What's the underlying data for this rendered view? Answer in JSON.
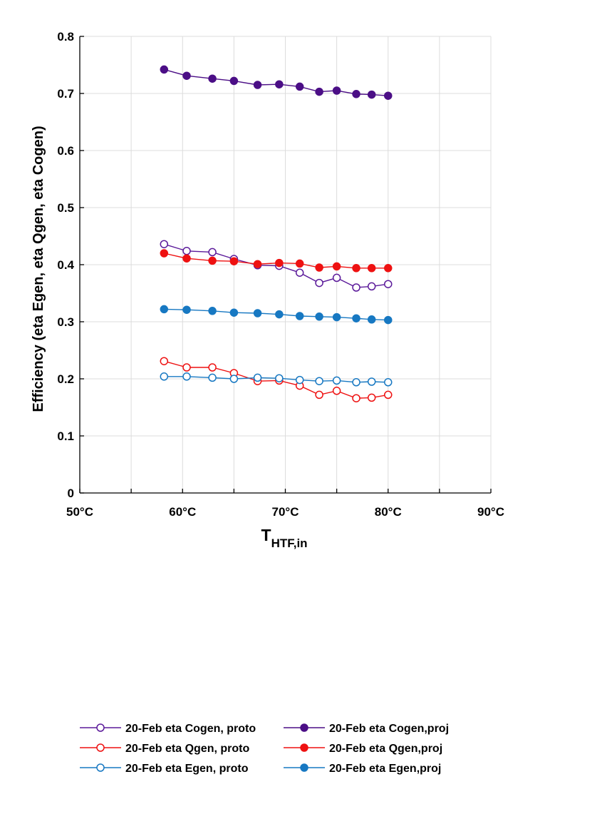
{
  "chart_data": {
    "type": "line",
    "ylabel": "Efficiency (eta Egen, eta Qgen, eta Cogen)",
    "xlabel_main": "T",
    "xlabel_sub": "HTF,in",
    "xlim": [
      50,
      90
    ],
    "ylim": [
      0,
      0.8
    ],
    "xticks": [
      50,
      60,
      70,
      80,
      90
    ],
    "xtick_labels": [
      "50°C",
      "60°C",
      "70°C",
      "80°C",
      "90°C"
    ],
    "xtick_minor": [
      55,
      65,
      75,
      85
    ],
    "yticks": [
      0,
      0.1,
      0.2,
      0.3,
      0.4,
      0.5,
      0.6,
      0.7,
      0.8
    ],
    "ytick_labels": [
      "0",
      "0.1",
      "0.2",
      "0.3",
      "0.4",
      "0.5",
      "0.6",
      "0.7",
      "0.8"
    ],
    "grid": true,
    "legend_position": "bottom",
    "x": [
      58.2,
      60.4,
      62.9,
      65.0,
      67.3,
      69.4,
      71.4,
      73.3,
      75.0,
      76.9,
      78.4,
      80.0
    ],
    "series": [
      {
        "name": "20-Feb eta Cogen, proto",
        "color": "#5b1a9a",
        "marker": "open",
        "values": [
          0.436,
          0.424,
          0.422,
          0.41,
          0.399,
          0.398,
          0.386,
          0.368,
          0.377,
          0.36,
          0.362,
          0.366
        ]
      },
      {
        "name": "20-Feb eta Qgen, proto",
        "color": "#ee1111",
        "marker": "open",
        "values": [
          0.231,
          0.22,
          0.22,
          0.21,
          0.196,
          0.197,
          0.188,
          0.172,
          0.179,
          0.166,
          0.167,
          0.172
        ]
      },
      {
        "name": "20-Feb eta Egen, proto",
        "color": "#1778c2",
        "marker": "open",
        "values": [
          0.204,
          0.204,
          0.202,
          0.2,
          0.202,
          0.201,
          0.198,
          0.196,
          0.197,
          0.194,
          0.195,
          0.194
        ]
      },
      {
        "name": "20-Feb eta Cogen,proj",
        "color": "#4b0e86",
        "marker": "filled",
        "values": [
          0.742,
          0.731,
          0.726,
          0.722,
          0.715,
          0.716,
          0.712,
          0.703,
          0.705,
          0.699,
          0.698,
          0.696
        ]
      },
      {
        "name": "20-Feb eta Qgen,proj",
        "color": "#ee1111",
        "marker": "filled",
        "values": [
          0.42,
          0.411,
          0.407,
          0.406,
          0.401,
          0.403,
          0.402,
          0.395,
          0.397,
          0.394,
          0.394,
          0.394
        ]
      },
      {
        "name": "20-Feb eta Egen,proj",
        "color": "#1778c2",
        "marker": "filled",
        "values": [
          0.322,
          0.321,
          0.319,
          0.316,
          0.315,
          0.313,
          0.31,
          0.309,
          0.308,
          0.306,
          0.304,
          0.303
        ]
      }
    ]
  }
}
